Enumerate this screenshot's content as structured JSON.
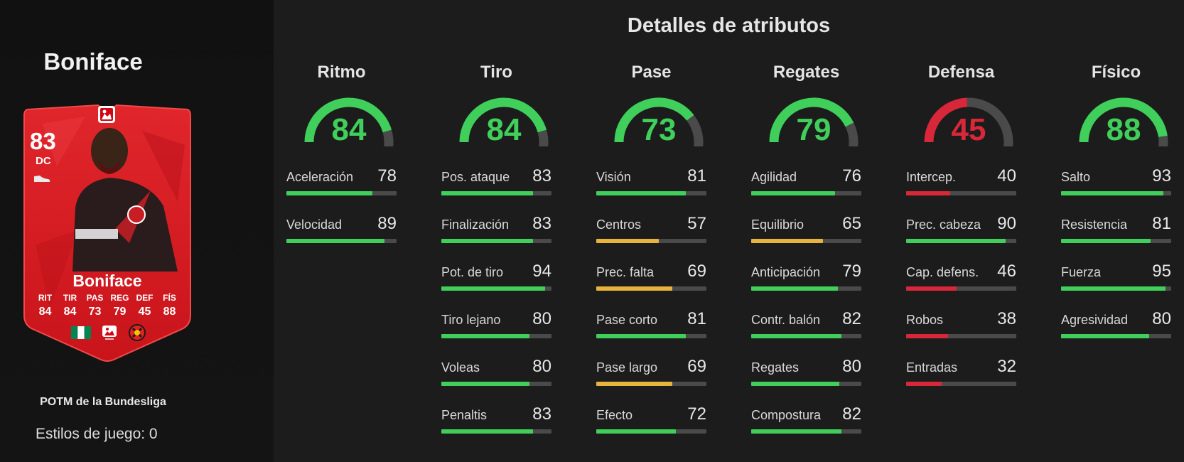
{
  "player": {
    "name": "Boniface",
    "card_name": "Boniface",
    "rating": "83",
    "position": "DC",
    "card_stat_labels": [
      "RIT",
      "TIR",
      "PAS",
      "REG",
      "DEF",
      "FÍS"
    ],
    "card_stat_values": [
      "84",
      "84",
      "73",
      "79",
      "45",
      "88"
    ],
    "promo": "POTM de la Bundesliga",
    "playstyles": "Estilos de juego: 0"
  },
  "title": "Detalles de atributos",
  "colors": {
    "green": "#3fcf5a",
    "yellow": "#e8b33c",
    "red": "#d9273a",
    "track": "#4a4a4a",
    "card_red": "#d11b22"
  },
  "categories": [
    {
      "name": "Ritmo",
      "value": "84",
      "color": "green",
      "attributes": [
        {
          "name": "Aceleración",
          "value": "78",
          "color": "green"
        },
        {
          "name": "Velocidad",
          "value": "89",
          "color": "green"
        }
      ]
    },
    {
      "name": "Tiro",
      "value": "84",
      "color": "green",
      "attributes": [
        {
          "name": "Pos. ataque",
          "value": "83",
          "color": "green"
        },
        {
          "name": "Finalización",
          "value": "83",
          "color": "green"
        },
        {
          "name": "Pot. de tiro",
          "value": "94",
          "color": "green"
        },
        {
          "name": "Tiro lejano",
          "value": "80",
          "color": "green"
        },
        {
          "name": "Voleas",
          "value": "80",
          "color": "green"
        },
        {
          "name": "Penaltis",
          "value": "83",
          "color": "green"
        }
      ]
    },
    {
      "name": "Pase",
      "value": "73",
      "color": "green",
      "attributes": [
        {
          "name": "Visión",
          "value": "81",
          "color": "green"
        },
        {
          "name": "Centros",
          "value": "57",
          "color": "yellow"
        },
        {
          "name": "Prec. falta",
          "value": "69",
          "color": "yellow"
        },
        {
          "name": "Pase corto",
          "value": "81",
          "color": "green"
        },
        {
          "name": "Pase largo",
          "value": "69",
          "color": "yellow"
        },
        {
          "name": "Efecto",
          "value": "72",
          "color": "green"
        }
      ]
    },
    {
      "name": "Regates",
      "value": "79",
      "color": "green",
      "attributes": [
        {
          "name": "Agilidad",
          "value": "76",
          "color": "green"
        },
        {
          "name": "Equilibrio",
          "value": "65",
          "color": "yellow"
        },
        {
          "name": "Anticipación",
          "value": "79",
          "color": "green"
        },
        {
          "name": "Contr. balón",
          "value": "82",
          "color": "green"
        },
        {
          "name": "Regates",
          "value": "80",
          "color": "green"
        },
        {
          "name": "Compostura",
          "value": "82",
          "color": "green"
        }
      ]
    },
    {
      "name": "Defensa",
      "value": "45",
      "color": "red",
      "attributes": [
        {
          "name": "Intercep.",
          "value": "40",
          "color": "red"
        },
        {
          "name": "Prec. cabeza",
          "value": "90",
          "color": "green"
        },
        {
          "name": "Cap. defens.",
          "value": "46",
          "color": "red"
        },
        {
          "name": "Robos",
          "value": "38",
          "color": "red"
        },
        {
          "name": "Entradas",
          "value": "32",
          "color": "red"
        }
      ]
    },
    {
      "name": "Físico",
      "value": "88",
      "color": "green",
      "attributes": [
        {
          "name": "Salto",
          "value": "93",
          "color": "green"
        },
        {
          "name": "Resistencia",
          "value": "81",
          "color": "green"
        },
        {
          "name": "Fuerza",
          "value": "95",
          "color": "green"
        },
        {
          "name": "Agresividad",
          "value": "80",
          "color": "green"
        }
      ]
    }
  ]
}
